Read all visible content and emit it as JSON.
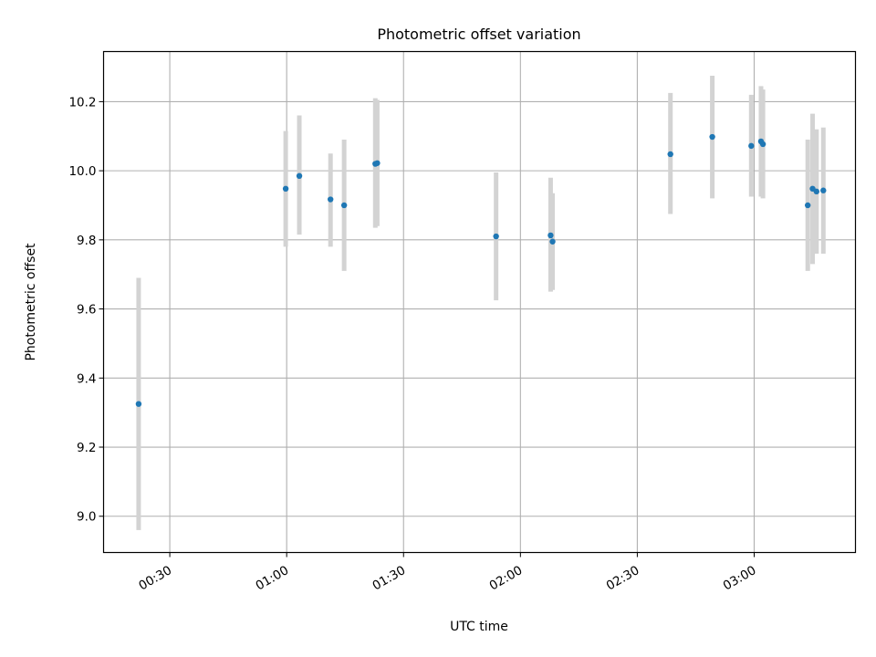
{
  "chart_data": {
    "type": "scatter",
    "title": "Photometric offset variation",
    "xlabel": "UTC time",
    "ylabel": "Photometric offset",
    "xlim": [
      "00:13",
      "03:26"
    ],
    "ylim": [
      8.895,
      10.345
    ],
    "xticks": [
      "00:30",
      "01:00",
      "01:30",
      "02:00",
      "02:30",
      "03:00"
    ],
    "yticks": [
      "9.0",
      "9.2",
      "9.4",
      "9.6",
      "9.8",
      "10.0",
      "10.2"
    ],
    "grid": true,
    "marker_color": "#1f77b4",
    "errorbar_color": "#d3d3d3",
    "points": [
      {
        "x": "00:22:00",
        "y": 9.325,
        "lo": 8.96,
        "hi": 9.69
      },
      {
        "x": "00:59:45",
        "y": 9.948,
        "lo": 9.78,
        "hi": 10.115
      },
      {
        "x": "01:03:15",
        "y": 9.985,
        "lo": 9.815,
        "hi": 10.16
      },
      {
        "x": "01:11:15",
        "y": 9.917,
        "lo": 9.78,
        "hi": 10.05
      },
      {
        "x": "01:14:45",
        "y": 9.9,
        "lo": 9.71,
        "hi": 10.09
      },
      {
        "x": "01:22:45",
        "y": 10.02,
        "lo": 9.835,
        "hi": 10.21
      },
      {
        "x": "01:23:15",
        "y": 10.022,
        "lo": 9.84,
        "hi": 10.205
      },
      {
        "x": "01:53:45",
        "y": 9.81,
        "lo": 9.625,
        "hi": 9.995
      },
      {
        "x": "02:07:45",
        "y": 9.813,
        "lo": 9.65,
        "hi": 9.98
      },
      {
        "x": "02:08:15",
        "y": 9.795,
        "lo": 9.655,
        "hi": 9.935
      },
      {
        "x": "02:38:30",
        "y": 10.048,
        "lo": 9.875,
        "hi": 10.225
      },
      {
        "x": "02:49:15",
        "y": 10.098,
        "lo": 9.92,
        "hi": 10.275
      },
      {
        "x": "02:59:15",
        "y": 10.072,
        "lo": 9.925,
        "hi": 10.22
      },
      {
        "x": "03:01:45",
        "y": 10.085,
        "lo": 9.925,
        "hi": 10.245
      },
      {
        "x": "03:02:15",
        "y": 10.077,
        "lo": 9.92,
        "hi": 10.235
      },
      {
        "x": "03:13:45",
        "y": 9.9,
        "lo": 9.71,
        "hi": 10.09
      },
      {
        "x": "03:15:00",
        "y": 9.948,
        "lo": 9.73,
        "hi": 10.165
      },
      {
        "x": "03:16:00",
        "y": 9.94,
        "lo": 9.76,
        "hi": 10.12
      },
      {
        "x": "03:17:45",
        "y": 9.943,
        "lo": 9.76,
        "hi": 10.125
      }
    ]
  }
}
